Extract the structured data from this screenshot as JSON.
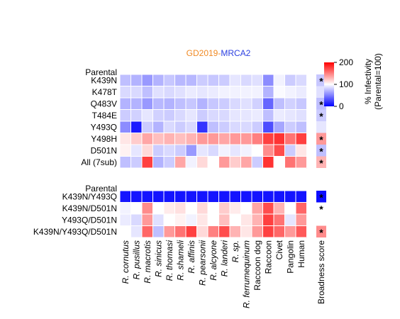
{
  "chart_data": {
    "type": "heatmap",
    "title": {
      "part1": "GD2019",
      "sep": "-",
      "part2": "MRCA2"
    },
    "colors": {
      "low": "#0000FF",
      "mid": "#FFFFFF",
      "high": "#FF0000",
      "title1": "#F08A24",
      "title2": "#2B3FE0"
    },
    "colorbar": {
      "min": 0,
      "mid": 100,
      "max": 200,
      "ticks": [
        "200",
        "100",
        "0"
      ],
      "label_line1": "% Infectivity",
      "label_line2": "(Parental=100)"
    },
    "columns": [
      "R. cornutus",
      "R. pusillus",
      "R. macrotis",
      "R. sinicus",
      "R. thomasi",
      "R. shameli",
      "R. affinis",
      "R. pearsonii",
      "R. alcyone",
      "R. landeri",
      "R. sp.",
      "R. ferrumequinum",
      "Raccoon dog",
      "Raccoon",
      "Civet",
      "Pangolin",
      "Human"
    ],
    "broadness_label": "Broadness score",
    "panels": [
      {
        "parental_label": "Parental",
        "rows": [
          {
            "label": "K439N",
            "values": [
              75,
              70,
              60,
              70,
              78,
              72,
              72,
              80,
              78,
              80,
              90,
              85,
              88,
              55,
              95,
              80,
              85
            ],
            "broadness": 78,
            "star": true
          },
          {
            "label": "K478T",
            "values": [
              85,
              85,
              75,
              88,
              85,
              88,
              92,
              90,
              92,
              95,
              95,
              95,
              95,
              70,
              98,
              95,
              92
            ],
            "broadness": 88,
            "star": false
          },
          {
            "label": "Q483V",
            "values": [
              70,
              70,
              60,
              72,
              70,
              75,
              78,
              70,
              78,
              80,
              85,
              88,
              82,
              40,
              75,
              82,
              78
            ],
            "broadness": 75,
            "star": true
          },
          {
            "label": "T484E",
            "values": [
              80,
              82,
              90,
              82,
              80,
              85,
              90,
              80,
              85,
              85,
              90,
              90,
              92,
              75,
              92,
              90,
              88
            ],
            "broadness": 80,
            "star": true
          },
          {
            "label": "Y493Q",
            "values": [
              55,
              10,
              80,
              70,
              85,
              80,
              85,
              20,
              75,
              80,
              85,
              85,
              80,
              30,
              65,
              80,
              75
            ],
            "broadness": 90,
            "star": false
          },
          {
            "label": "Y498H",
            "values": [
              110,
              120,
              135,
              125,
              130,
              125,
              130,
              140,
              140,
              135,
              140,
              140,
              150,
              175,
              180,
              155,
              175
            ],
            "broadness": 140,
            "star": true
          },
          {
            "label": "D501N",
            "values": [
              105,
              90,
              115,
              80,
              85,
              80,
              60,
              90,
              85,
              95,
              90,
              95,
              100,
              145,
              170,
              80,
              110
            ],
            "broadness": 75,
            "star": true
          },
          {
            "label": "All (7sub)",
            "values": [
              75,
              80,
              175,
              70,
              80,
              135,
              95,
              115,
              100,
              140,
              120,
              135,
              80,
              180,
              100,
              155,
              140
            ],
            "broadness": 130,
            "star": true
          }
        ]
      },
      {
        "parental_label": "Parental",
        "rows": [
          {
            "label": "K439N/Y493Q",
            "values": [
              8,
              8,
              8,
              8,
              8,
              8,
              8,
              8,
              8,
              8,
              8,
              8,
              8,
              8,
              8,
              8,
              8
            ],
            "broadness": 5,
            "star": true
          },
          {
            "label": "K439N/D501N",
            "values": [
              95,
              100,
              145,
              100,
              108,
              112,
              100,
              115,
              100,
              120,
              108,
              100,
              135,
              170,
              130,
              100,
              160
            ],
            "broadness": 100,
            "star": true
          },
          {
            "label": "Y493Q/D501N",
            "values": [
              92,
              85,
              140,
              88,
              100,
              105,
              95,
              110,
              100,
              125,
              100,
              110,
              130,
              175,
              155,
              90,
              140
            ],
            "broadness": 100,
            "star": false
          },
          {
            "label": "K439N/Y493Q/D501N",
            "values": [
              100,
              90,
              160,
              75,
              140,
              155,
              175,
              115,
              150,
              170,
              130,
              110,
              140,
              175,
              160,
              140,
              165
            ],
            "broadness": 145,
            "star": true
          }
        ]
      }
    ]
  }
}
